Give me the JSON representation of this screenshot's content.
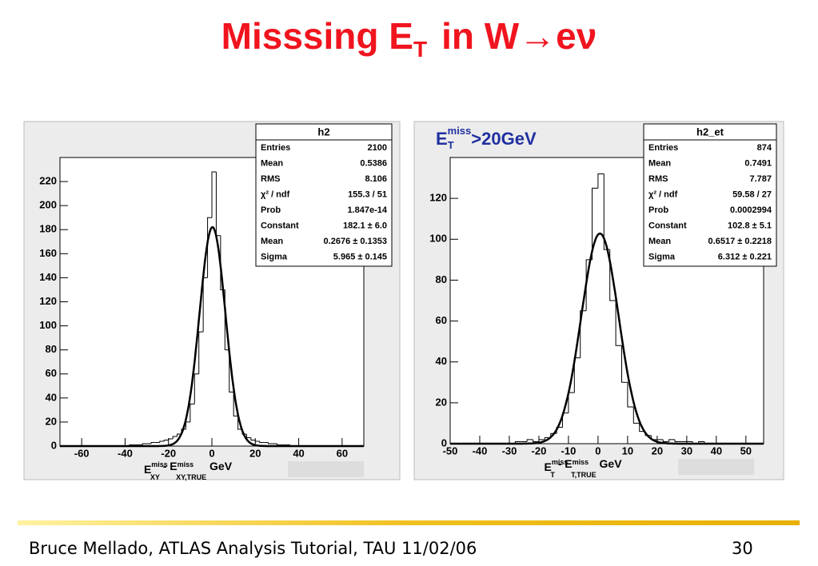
{
  "slide": {
    "title": {
      "text": "Misssing E",
      "sub": "T",
      "rest": "in W→eν"
    },
    "footer": "Bruce Mellado, ATLAS Analysis Tutorial, TAU 11/02/06",
    "page": "30"
  },
  "chart_data": [
    {
      "type": "histogram",
      "stats_title": "h2",
      "stats": [
        [
          "Entries",
          "2100"
        ],
        [
          "Mean",
          "0.5386"
        ],
        [
          "RMS",
          "8.106"
        ],
        [
          "χ² / ndf",
          "155.3 / 51"
        ],
        [
          "Prob",
          "1.847e-14"
        ],
        [
          "Constant",
          "182.1 ± 6.0"
        ],
        [
          "Mean",
          "0.2676 ± 0.1353"
        ],
        [
          "Sigma",
          "5.965 ± 0.145"
        ]
      ],
      "fit": {
        "constant": 182.1,
        "mean": 0.2676,
        "sigma": 5.965
      },
      "x_label": {
        "main": "E",
        "sup": "miss",
        "sub": "XY",
        "mid": " - E",
        "sup2": "miss",
        "sub2": "XY,TRUE",
        "unit": " GeV"
      },
      "bins": [
        -70,
        -68,
        -66,
        -64,
        -62,
        -60,
        -58,
        -56,
        -54,
        -52,
        -50,
        -48,
        -46,
        -44,
        -42,
        -40,
        -38,
        -36,
        -34,
        -32,
        -30,
        -28,
        -26,
        -24,
        -22,
        -20,
        -18,
        -16,
        -14,
        -12,
        -10,
        -8,
        -6,
        -4,
        -2,
        0,
        2,
        4,
        6,
        8,
        10,
        12,
        14,
        16,
        18,
        20,
        22,
        24,
        26,
        28,
        30,
        32,
        34,
        36,
        38,
        40,
        42,
        44,
        46,
        48,
        50,
        52,
        54,
        56,
        58,
        60,
        62,
        64,
        66,
        68,
        70
      ],
      "values": [
        0,
        0,
        0,
        0,
        0,
        0,
        0,
        0,
        0,
        0,
        0,
        0,
        0,
        0,
        0,
        0,
        1,
        1,
        1,
        2,
        2,
        3,
        3,
        4,
        5,
        6,
        8,
        10,
        14,
        20,
        35,
        60,
        95,
        140,
        190,
        228,
        175,
        130,
        80,
        45,
        25,
        14,
        10,
        7,
        5,
        4,
        3,
        3,
        2,
        2,
        1,
        1,
        1,
        0,
        0,
        0,
        0,
        0,
        0,
        0,
        0,
        0,
        0,
        0,
        0,
        0,
        0,
        0,
        0,
        0
      ],
      "xlim": [
        -70,
        70
      ],
      "xticks": [
        -60,
        -40,
        -20,
        0,
        20,
        40,
        60
      ],
      "ylim": [
        0,
        240
      ],
      "yticks": [
        0,
        20,
        40,
        60,
        80,
        100,
        120,
        140,
        160,
        180,
        200,
        220
      ]
    },
    {
      "type": "histogram",
      "stats_title": "h2_et",
      "annotation": {
        "main": "E",
        "sub": "T",
        "sup": "miss",
        "rest": ">20GeV"
      },
      "stats": [
        [
          "Entries",
          "874"
        ],
        [
          "Mean",
          "0.7491"
        ],
        [
          "RMS",
          "7.787"
        ],
        [
          "χ² / ndf",
          "59.58 / 27"
        ],
        [
          "Prob",
          "0.0002994"
        ],
        [
          "Constant",
          "102.8 ± 5.1"
        ],
        [
          "Mean",
          "0.6517 ± 0.2218"
        ],
        [
          "Sigma",
          "6.312 ± 0.221"
        ]
      ],
      "fit": {
        "constant": 102.8,
        "mean": 0.6517,
        "sigma": 6.312
      },
      "x_label": {
        "main": "E",
        "sup": "miss",
        "sub": "T",
        "mid": " - E",
        "sup2": "miss",
        "sub2": "T,TRUE",
        "unit": " GeV"
      },
      "bins": [
        -50,
        -48,
        -46,
        -44,
        -42,
        -40,
        -38,
        -36,
        -34,
        -32,
        -30,
        -28,
        -26,
        -24,
        -22,
        -20,
        -18,
        -16,
        -14,
        -12,
        -10,
        -8,
        -6,
        -4,
        -2,
        0,
        2,
        4,
        6,
        8,
        10,
        12,
        14,
        16,
        18,
        20,
        22,
        24,
        26,
        28,
        30,
        32,
        34,
        36,
        38,
        40,
        42,
        44,
        46,
        48,
        50,
        52,
        54,
        56
      ],
      "values": [
        0,
        0,
        0,
        0,
        0,
        0,
        0,
        0,
        0,
        0,
        0,
        1,
        1,
        2,
        1,
        2,
        3,
        5,
        8,
        15,
        25,
        42,
        65,
        90,
        125,
        132,
        95,
        70,
        48,
        30,
        18,
        10,
        6,
        4,
        2,
        2,
        1,
        2,
        1,
        1,
        1,
        0,
        1,
        0,
        0,
        0,
        0,
        0,
        0,
        0,
        0,
        0,
        0
      ],
      "xlim": [
        -50,
        56
      ],
      "xticks": [
        -50,
        -40,
        -30,
        -20,
        -10,
        0,
        10,
        20,
        30,
        40,
        50
      ],
      "ylim": [
        0,
        140
      ],
      "yticks": [
        0,
        20,
        40,
        60,
        80,
        100,
        120
      ]
    }
  ]
}
